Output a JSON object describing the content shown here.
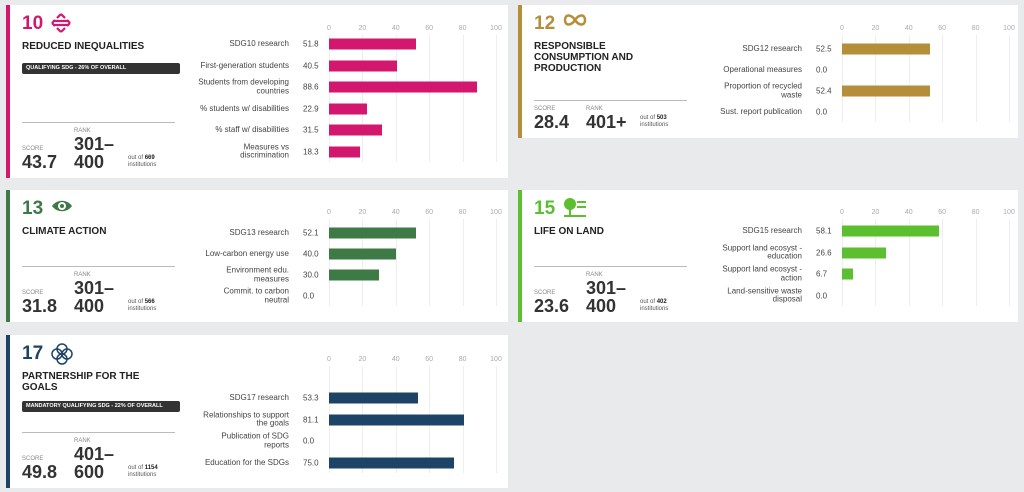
{
  "cards": [
    {
      "number": "10",
      "title": "REDUCED INEQUALITIES",
      "badge": "QUALIFYING SDG - 26% OF OVERALL",
      "score_label": "SCORE",
      "score": "43.7",
      "rank_label": "RANK",
      "rank": "301–400",
      "out_of": "out of",
      "count": "669",
      "institutions": "institutions"
    },
    {
      "number": "12",
      "title": "RESPONSIBLE CONSUMPTION AND PRODUCTION",
      "score_label": "SCORE",
      "score": "28.4",
      "rank_label": "RANK",
      "rank": "401+",
      "out_of": "out of",
      "count": "503",
      "institutions": "institutions"
    },
    {
      "number": "13",
      "title": "CLIMATE ACTION",
      "score_label": "SCORE",
      "score": "31.8",
      "rank_label": "RANK",
      "rank": "301–400",
      "out_of": "out of",
      "count": "566",
      "institutions": "institutions"
    },
    {
      "number": "15",
      "title": "LIFE ON LAND",
      "score_label": "SCORE",
      "score": "23.6",
      "rank_label": "RANK",
      "rank": "301–400",
      "out_of": "out of",
      "count": "402",
      "institutions": "institutions"
    },
    {
      "number": "17",
      "title": "PARTNERSHIP FOR THE GOALS",
      "badge": "MANDATORY QUALIFYING SDG - 22% OF OVERALL",
      "score_label": "SCORE",
      "score": "49.8",
      "rank_label": "RANK",
      "rank": "401–600",
      "out_of": "out of",
      "count": "1154",
      "institutions": "institutions"
    }
  ],
  "chart_data": [
    {
      "type": "bar",
      "color": "#d4176e",
      "xlim": [
        0,
        100
      ],
      "xticks": [
        0,
        20,
        40,
        60,
        80,
        100
      ],
      "categories": [
        "SDG10 research",
        "First-generation students",
        "Students from developing countries",
        "% students w/ disabilities",
        "% staff w/ disabilities",
        "Measures vs discrimination"
      ],
      "values": [
        51.8,
        40.5,
        88.6,
        22.9,
        31.5,
        18.3
      ],
      "value_labels": [
        "51.8",
        "40.5",
        "88.6",
        "22.9",
        "31.5",
        "18.3"
      ]
    },
    {
      "type": "bar",
      "color": "#b58e3a",
      "xlim": [
        0,
        100
      ],
      "xticks": [
        0,
        20,
        40,
        60,
        80,
        100
      ],
      "categories": [
        "SDG12 research",
        "Operational measures",
        "Proportion of recycled waste",
        "Sust. report publication"
      ],
      "values": [
        52.5,
        0,
        52.4,
        0
      ],
      "value_labels": [
        "52.5",
        "0.0",
        "52.4",
        "0.0"
      ]
    },
    {
      "type": "bar",
      "color": "#3d7a45",
      "xlim": [
        0,
        100
      ],
      "xticks": [
        0,
        20,
        40,
        60,
        80,
        100
      ],
      "categories": [
        "SDG13 research",
        "Low-carbon energy use",
        "Environment edu. measures",
        "Commit. to carbon neutral"
      ],
      "values": [
        52.1,
        40,
        30,
        0
      ],
      "value_labels": [
        "52.1",
        "40.0",
        "30.0",
        "0.0"
      ]
    },
    {
      "type": "bar",
      "color": "#5bbf2f",
      "xlim": [
        0,
        100
      ],
      "xticks": [
        0,
        20,
        40,
        60,
        80,
        100
      ],
      "categories": [
        "SDG15 research",
        "Support land ecosyst - education",
        "Support land ecosyst - action",
        "Land-sensitive waste disposal"
      ],
      "values": [
        58.1,
        26.6,
        6.7,
        0
      ],
      "value_labels": [
        "58.1",
        "26.6",
        "6.7",
        "0.0"
      ]
    },
    {
      "type": "bar",
      "color": "#1d4466",
      "xlim": [
        0,
        100
      ],
      "xticks": [
        0,
        20,
        40,
        60,
        80,
        100
      ],
      "categories": [
        "SDG17 research",
        "Relationships to support the goals",
        "Publication of SDG reports",
        "Education for the SDGs"
      ],
      "values": [
        53.3,
        81.1,
        0,
        75
      ],
      "value_labels": [
        "53.3",
        "81.1",
        "0.0",
        "75.0"
      ]
    }
  ]
}
